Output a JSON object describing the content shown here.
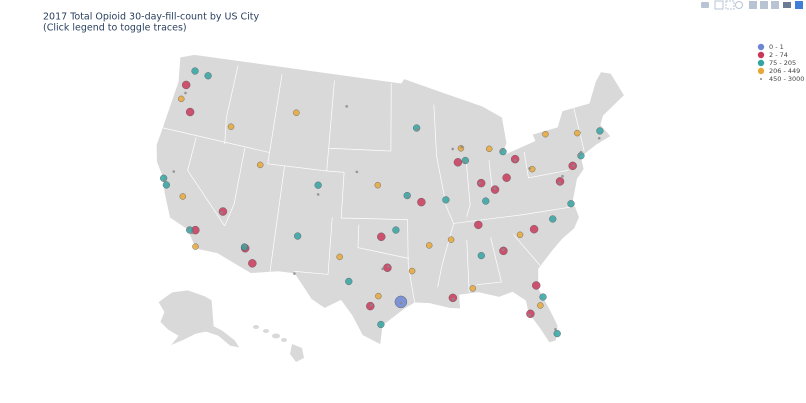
{
  "chart_data": {
    "type": "scattergeo",
    "title": "2017 Total Opioid 30-day-fill-count by US City",
    "subtitle": "(Click legend to toggle traces)",
    "series": [
      {
        "name": "0 - 1",
        "color": "#6c86d4",
        "lon": [
          -95.4
        ],
        "lat": [
          29.8
        ]
      },
      {
        "name": "2 - 74",
        "color": "#c8385a",
        "lon": [
          -121.5,
          -115.1,
          -112.0,
          -111.0,
          -97.5,
          -93.0,
          -88.5,
          -86.0,
          -84.5,
          -83.0,
          -81.7,
          -86.8,
          -84.4,
          -80.8,
          -81.5,
          -82.5,
          -90.1,
          -96.8,
          -98.5,
          -77.0,
          -75.2,
          -117.6,
          -122.9
        ],
        "lat": [
          44.0,
          36.2,
          33.4,
          32.2,
          35.5,
          38.5,
          41.8,
          39.8,
          39.1,
          40.0,
          41.5,
          36.2,
          33.7,
          35.2,
          30.3,
          27.9,
          30.0,
          32.8,
          29.4,
          38.9,
          40.0,
          34.1,
          46.2
        ]
      },
      {
        "name": "75 - 205",
        "color": "#33a3a3",
        "lon": [
          -122.4,
          -121.9,
          -118.2,
          -112.1,
          -104.9,
          -95.9,
          -94.6,
          -90.2,
          -87.6,
          -83.0,
          -85.7,
          -86.8,
          -81.0,
          -80.2,
          -76.3,
          -78.6,
          -97.4,
          -106.6,
          -122.3,
          -93.3,
          -74.0,
          -71.1,
          -120.5,
          -100.8
        ],
        "lat": [
          37.8,
          37.3,
          34.0,
          33.5,
          39.7,
          36.1,
          39.1,
          38.6,
          41.9,
          42.3,
          38.2,
          33.5,
          29.2,
          25.8,
          36.8,
          35.8,
          27.8,
          35.1,
          47.6,
          45.0,
          40.7,
          42.4,
          47.5,
          31.5
        ]
      },
      {
        "name": "206 - 449",
        "color": "#e8a838",
        "lon": [
          -123.0,
          -119.8,
          -117.2,
          -116.2,
          -111.9,
          -101.9,
          -97.7,
          -92.3,
          -88.0,
          -84.6,
          -79.9,
          -77.6,
          -73.8,
          -82.4,
          -81.4,
          -88.0,
          -89.9,
          -98.0,
          -108.5,
          -94.2
        ],
        "lat": [
          44.9,
          36.7,
          32.7,
          43.6,
          40.8,
          33.6,
          30.3,
          34.7,
          43.0,
          42.7,
          40.4,
          43.2,
          42.7,
          34.9,
          28.5,
          30.7,
          35.1,
          40.0,
          45.8,
          32.5
        ]
      },
      {
        "name": "450 - 3000",
        "color": "#8a8a8a",
        "lon": [
          -122.2,
          -118.4,
          -117.9,
          -112.0,
          -104.8,
          -96.7,
          -95.4,
          -90.1,
          -87.7,
          -87.9,
          -83.1,
          -84.5,
          -80.2,
          -75.1,
          -74.2,
          -73.9,
          -71.4,
          -77.1,
          -76.6,
          -81.7,
          -84.4,
          -86.2,
          -93.2,
          -94.5,
          -97.3,
          -98.4,
          -106.5,
          -115.2,
          -121.5,
          -122.7,
          -80.3,
          -82.6,
          -89.0,
          -100.5,
          -102.2
        ],
        "lat": [
          37.6,
          34.1,
          33.8,
          33.6,
          38.9,
          32.9,
          29.7,
          29.9,
          41.8,
          43.1,
          42.4,
          39.2,
          40.5,
          40.0,
          40.8,
          41.0,
          41.8,
          38.8,
          39.3,
          41.4,
          33.8,
          39.8,
          44.9,
          39.0,
          32.7,
          29.5,
          31.8,
          36.1,
          38.6,
          45.5,
          26.2,
          27.8,
          43.0,
          41.1,
          46.8
        ]
      }
    ]
  }
}
